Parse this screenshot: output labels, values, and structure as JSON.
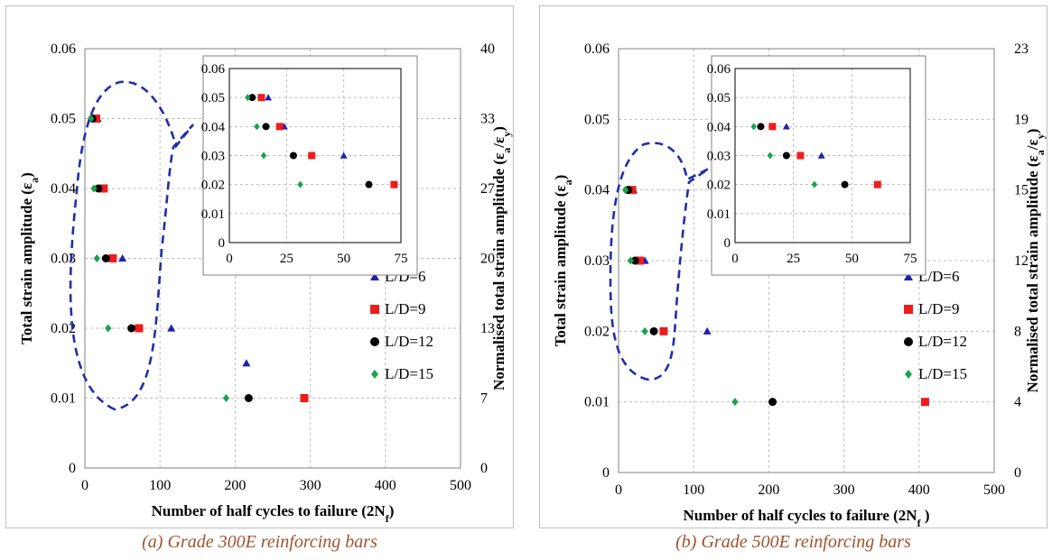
{
  "captions": [
    "(a) Grade 300E reinforcing bars",
    "(b) Grade 500E reinforcing bars"
  ],
  "colors": {
    "L/D=6": "#1f1fb4",
    "L/D=9": "#ee1c1c",
    "L/D=12": "#000000",
    "L/D=15": "#1aa34a",
    "dashed_outline": "#1f2fa8",
    "grid": "#bdbdbd"
  },
  "chart_data": [
    {
      "type": "scatter",
      "xlabel": "Number of half cycles to failure (2N",
      "xlabel_sub": "f",
      "xlabel_tail": ")",
      "ylabel": "Total strain amplitude (ε",
      "ylabel_sub": "a",
      "ylabel_tail": ")",
      "y2label": "Normalised total strain amplitude (ε",
      "y2label_sub1": "a",
      "y2label_mid": "/ε",
      "y2label_sub2": "y",
      "y2label_tail": ")",
      "xlim": [
        0,
        500
      ],
      "ylim": [
        0,
        0.06
      ],
      "x_ticks": [
        "0",
        "100",
        "200",
        "300",
        "400",
        "500"
      ],
      "y_ticks": [
        "0",
        "0.01",
        "0.02",
        "0.03",
        "0.04",
        "0.05",
        "0.06"
      ],
      "y2_ticks": [
        "0",
        "7",
        "13",
        "20",
        "27",
        "33",
        "40"
      ],
      "grid": true,
      "legend_placement": "right",
      "series": [
        {
          "name": "L/D=6",
          "marker": "triangle",
          "points": [
            [
              17,
              0.05
            ],
            [
              22,
              0.04
            ],
            [
              50,
              0.03
            ],
            [
              115,
              0.02
            ],
            [
              215,
              0.015
            ]
          ]
        },
        {
          "name": "L/D=9",
          "marker": "square",
          "points": [
            [
              15,
              0.05
            ],
            [
              25,
              0.04
            ],
            [
              37,
              0.03
            ],
            [
              72,
              0.02
            ],
            [
              292,
              0.01
            ]
          ]
        },
        {
          "name": "L/D=12",
          "marker": "circle",
          "points": [
            [
              10,
              0.05
            ],
            [
              18,
              0.04
            ],
            [
              28,
              0.03
            ],
            [
              62,
              0.02
            ],
            [
              218,
              0.01
            ]
          ]
        },
        {
          "name": "L/D=15",
          "marker": "diamond",
          "points": [
            [
              8,
              0.05
            ],
            [
              12,
              0.04
            ],
            [
              16,
              0.03
            ],
            [
              31,
              0.02
            ],
            [
              188,
              0.01
            ]
          ]
        }
      ],
      "inset": {
        "xlim": [
          0,
          75
        ],
        "ylim": [
          0,
          0.06
        ],
        "x_ticks": [
          "0",
          "25",
          "50",
          "75"
        ],
        "y_ticks": [
          "0",
          "0.01",
          "0.02",
          "0.03",
          "0.04",
          "0.05",
          "0.06"
        ],
        "series": [
          {
            "name": "L/D=6",
            "marker": "triangle",
            "points": [
              [
                17,
                0.05
              ],
              [
                24,
                0.04
              ],
              [
                50,
                0.03
              ]
            ]
          },
          {
            "name": "L/D=9",
            "marker": "square",
            "points": [
              [
                14,
                0.05
              ],
              [
                22,
                0.04
              ],
              [
                36,
                0.03
              ],
              [
                72,
                0.02
              ]
            ]
          },
          {
            "name": "L/D=12",
            "marker": "circle",
            "points": [
              [
                10,
                0.05
              ],
              [
                16,
                0.04
              ],
              [
                28,
                0.03
              ],
              [
                61,
                0.02
              ]
            ]
          },
          {
            "name": "L/D=15",
            "marker": "diamond",
            "points": [
              [
                8,
                0.05
              ],
              [
                12,
                0.04
              ],
              [
                15,
                0.03
              ],
              [
                31,
                0.02
              ]
            ]
          }
        ]
      }
    },
    {
      "type": "scatter",
      "xlabel": "Number of half cycles to failure (2N",
      "xlabel_sub": "f",
      "xlabel_tail": " )",
      "ylabel": "Total strain amplitude (ε",
      "ylabel_sub": "a",
      "ylabel_tail": ")",
      "y2label": "Normalised total strain amplitude (ε",
      "y2label_sub1": "a",
      "y2label_mid": "/ε",
      "y2label_sub2": "y",
      "y2label_tail": ")",
      "xlim": [
        0,
        500
      ],
      "ylim": [
        0,
        0.06
      ],
      "x_ticks": [
        "0",
        "100",
        "200",
        "300",
        "400",
        "500"
      ],
      "y_ticks": [
        "0",
        "0.01",
        "0.02",
        "0.03",
        "0.04",
        "0.05",
        "0.06"
      ],
      "y2_ticks": [
        "0",
        "4",
        "8",
        "12",
        "15",
        "19",
        "23"
      ],
      "grid": true,
      "legend_placement": "right",
      "series": [
        {
          "name": "L/D=6",
          "marker": "triangle",
          "points": [
            [
              20,
              0.04
            ],
            [
              35,
              0.03
            ],
            [
              118,
              0.02
            ]
          ]
        },
        {
          "name": "L/D=9",
          "marker": "square",
          "points": [
            [
              18,
              0.04
            ],
            [
              28,
              0.03
            ],
            [
              60,
              0.02
            ],
            [
              408,
              0.01
            ]
          ]
        },
        {
          "name": "L/D=12",
          "marker": "circle",
          "points": [
            [
              13,
              0.04
            ],
            [
              22,
              0.03
            ],
            [
              47,
              0.02
            ],
            [
              205,
              0.01
            ]
          ]
        },
        {
          "name": "L/D=15",
          "marker": "diamond",
          "points": [
            [
              9,
              0.04
            ],
            [
              16,
              0.03
            ],
            [
              35,
              0.02
            ],
            [
              155,
              0.01
            ]
          ]
        }
      ],
      "inset": {
        "xlim": [
          0,
          75
        ],
        "ylim": [
          0,
          0.06
        ],
        "x_ticks": [
          "0",
          "25",
          "50",
          "75"
        ],
        "y_ticks": [
          "0",
          "0.01",
          "0.02",
          "0.03",
          "0.04",
          "0.05",
          "0.06"
        ],
        "series": [
          {
            "name": "L/D=6",
            "marker": "triangle",
            "points": [
              [
                22,
                0.04
              ],
              [
                37,
                0.03
              ]
            ]
          },
          {
            "name": "L/D=9",
            "marker": "square",
            "points": [
              [
                16,
                0.04
              ],
              [
                28,
                0.03
              ],
              [
                61,
                0.02
              ]
            ]
          },
          {
            "name": "L/D=12",
            "marker": "circle",
            "points": [
              [
                11,
                0.04
              ],
              [
                22,
                0.03
              ],
              [
                47,
                0.02
              ]
            ]
          },
          {
            "name": "L/D=15",
            "marker": "diamond",
            "points": [
              [
                8,
                0.04
              ],
              [
                15,
                0.03
              ],
              [
                34,
                0.02
              ]
            ]
          }
        ]
      }
    }
  ]
}
